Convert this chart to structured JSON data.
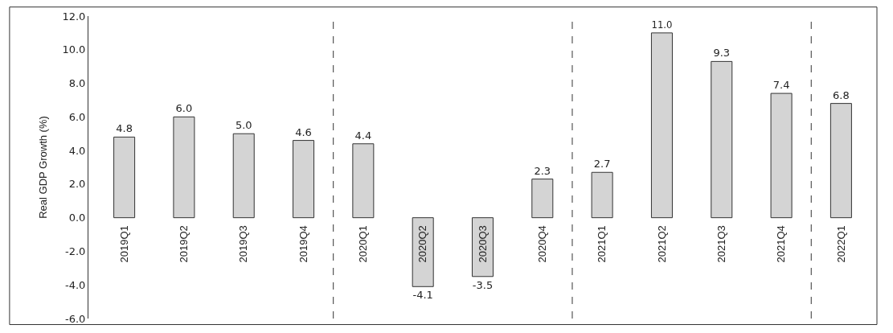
{
  "chart_data": {
    "type": "bar",
    "ylabel": "Real GDP Growth (%)",
    "categories": [
      "2019Q1",
      "2019Q2",
      "2019Q3",
      "2019Q4",
      "2020Q1",
      "2020Q2",
      "2020Q3",
      "2020Q4",
      "2021Q1",
      "2021Q2",
      "2021Q3",
      "2021Q4",
      "2022Q1"
    ],
    "values": [
      4.8,
      6.0,
      5.0,
      4.6,
      4.4,
      -4.1,
      -3.5,
      2.3,
      2.7,
      11.0,
      9.3,
      7.4,
      6.8
    ],
    "value_labels": [
      "4.8",
      "6.0",
      "5.0",
      "4.6",
      "4.4",
      "-4.1",
      "-3.5",
      "2.3",
      "2.7",
      "11.0",
      "9.3",
      "7.4",
      "6.8"
    ],
    "color": "#d4d4d4",
    "ylim": [
      -6,
      12
    ],
    "yticks": [
      {
        "value": -6,
        "label": "-6.0"
      },
      {
        "value": -4,
        "label": "-4.0"
      },
      {
        "value": -2,
        "label": "-2.0"
      },
      {
        "value": 0,
        "label": "0.0"
      },
      {
        "value": 2,
        "label": "2.0"
      },
      {
        "value": 4,
        "label": "4.0"
      },
      {
        "value": 6,
        "label": "6.0"
      },
      {
        "value": 8,
        "label": "8.0"
      },
      {
        "value": 10,
        "label": "10.0"
      },
      {
        "value": 12,
        "label": "12.0"
      }
    ]
  }
}
